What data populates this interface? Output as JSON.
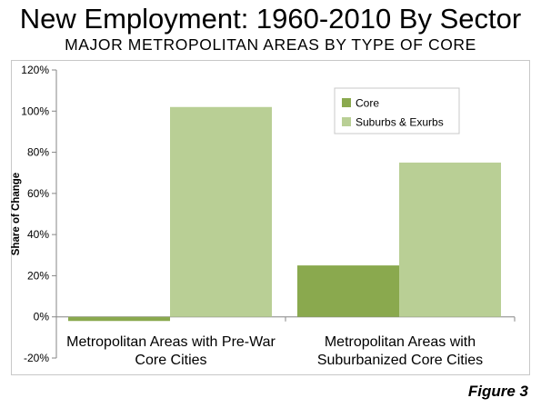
{
  "header": {
    "title": "New Employment: 1960-2010 By Sector",
    "subtitle": "MAJOR METROPOLITAN AREAS BY TYPE OF CORE"
  },
  "footer": {
    "figure_label": "Figure 3"
  },
  "chart_data": {
    "type": "bar",
    "title": "New Employment: 1960-2010 By Sector",
    "subtitle": "MAJOR METROPOLITAN AREAS BY TYPE OF CORE",
    "xlabel": "",
    "ylabel": "Share of Change",
    "categories": [
      [
        "Metropolitan Areas with Pre-War",
        "Core Cities"
      ],
      [
        "Metropolitan Areas with",
        "Suburbanized Core Cities"
      ]
    ],
    "series": [
      {
        "name": "Core",
        "values": [
          -2,
          25
        ],
        "color": "#8aa94e"
      },
      {
        "name": "Suburbs & Exurbs",
        "values": [
          102,
          75
        ],
        "color": "#b9cf95"
      }
    ],
    "ylim": [
      -20,
      120
    ],
    "yticks": [
      -20,
      0,
      20,
      40,
      60,
      80,
      100,
      120
    ],
    "ytick_format": "percent",
    "grid": false,
    "legend_position": "top-right"
  }
}
